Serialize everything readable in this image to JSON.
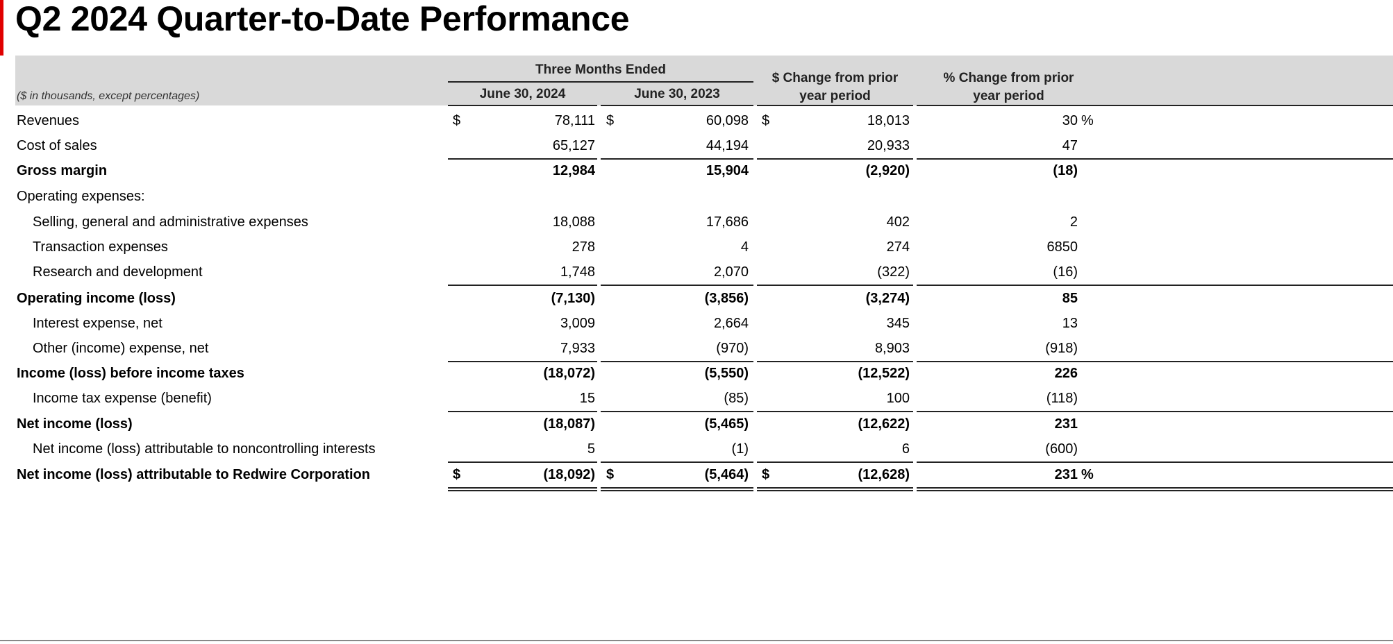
{
  "title": "Q2 2024 Quarter-to-Date Performance",
  "header": {
    "units_note": "($ in thousands, except percentages)",
    "group_label": "Three Months Ended",
    "col1": "June 30, 2024",
    "col2": "June 30, 2023",
    "col3_line1": "$ Change from prior",
    "col3_line2": "year period",
    "col4_line1": "% Change from prior",
    "col4_line2": "year period"
  },
  "rows": [
    {
      "label": "Revenues",
      "v1": "78,111",
      "v2": "60,098",
      "v3": "18,013",
      "v4": "30",
      "dollar": "$",
      "pct": "%"
    },
    {
      "label": "Cost of sales",
      "v1": "65,127",
      "v2": "44,194",
      "v3": "20,933",
      "v4": "47"
    },
    {
      "label": "Gross margin",
      "v1": "12,984",
      "v2": "15,904",
      "v3": "(2,920)",
      "v4": "(18)"
    },
    {
      "label": "Operating expenses:"
    },
    {
      "label": "Selling, general and administrative expenses",
      "v1": "18,088",
      "v2": "17,686",
      "v3": "402",
      "v4": "2"
    },
    {
      "label": "Transaction expenses",
      "v1": "278",
      "v2": "4",
      "v3": "274",
      "v4": "6850"
    },
    {
      "label": "Research and development",
      "v1": "1,748",
      "v2": "2,070",
      "v3": "(322)",
      "v4": "(16)"
    },
    {
      "label": "Operating income (loss)",
      "v1": "(7,130)",
      "v2": "(3,856)",
      "v3": "(3,274)",
      "v4": "85"
    },
    {
      "label": "Interest expense, net",
      "v1": "3,009",
      "v2": "2,664",
      "v3": "345",
      "v4": "13"
    },
    {
      "label": "Other (income) expense, net",
      "v1": "7,933",
      "v2": "(970)",
      "v3": "8,903",
      "v4": "(918)"
    },
    {
      "label": "Income (loss) before income taxes",
      "v1": "(18,072)",
      "v2": "(5,550)",
      "v3": "(12,522)",
      "v4": "226"
    },
    {
      "label": "Income tax expense (benefit)",
      "v1": "15",
      "v2": "(85)",
      "v3": "100",
      "v4": "(118)"
    },
    {
      "label": "Net income (loss)",
      "v1": "(18,087)",
      "v2": "(5,465)",
      "v3": "(12,622)",
      "v4": "231"
    },
    {
      "label": "Net income (loss) attributable to noncontrolling interests",
      "v1": "5",
      "v2": "(1)",
      "v3": "6",
      "v4": "(600)"
    },
    {
      "label": "Net income (loss) attributable to Redwire Corporation",
      "v1": "(18,092)",
      "v2": "(5,464)",
      "v3": "(12,628)",
      "v4": "231",
      "dollar": "$",
      "pct": "%"
    }
  ],
  "colors": {
    "accent": "#e00000",
    "header_band": "#d9d9d9"
  }
}
